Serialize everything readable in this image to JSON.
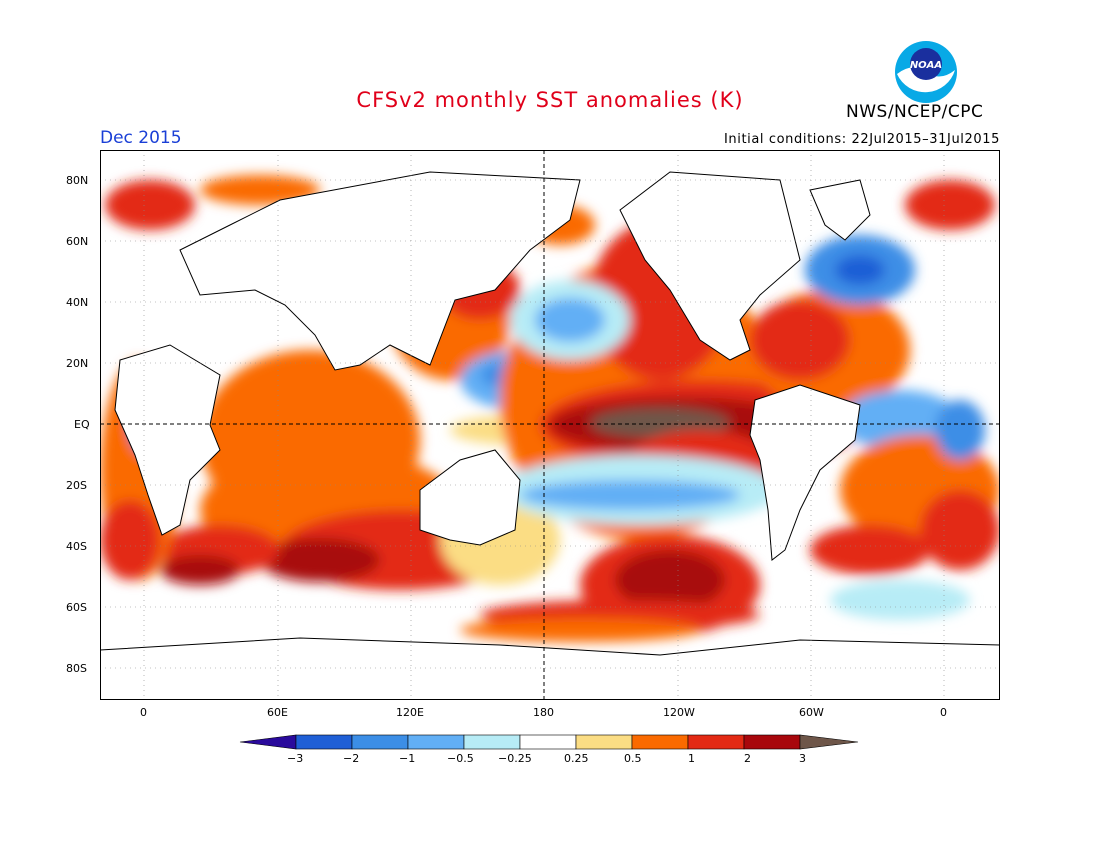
{
  "header": {
    "title": "CFSv2 monthly SST anomalies (K)",
    "org": "NWS/NCEP/CPC",
    "logo_text": "NOAA",
    "month": "Dec 2015",
    "initial_conditions": "Initial conditions: 22Jul2015–31Jul2015"
  },
  "axes": {
    "lat_labels": [
      "80N",
      "60N",
      "40N",
      "20N",
      "EQ",
      "20S",
      "40S",
      "60S",
      "80S"
    ],
    "lon_labels": [
      "0",
      "60E",
      "120E",
      "180",
      "120W",
      "60W",
      "0"
    ]
  },
  "colorbar": {
    "labels": [
      "−3",
      "−2",
      "−1",
      "−0.5",
      "−0.25",
      "0.25",
      "0.5",
      "1",
      "2",
      "3"
    ],
    "colors": [
      "#2a0a9c",
      "#1f5fd6",
      "#3c8ee6",
      "#62aff5",
      "#b7ecf6",
      "#ffffff",
      "#fbdd84",
      "#fa6a00",
      "#e32a14",
      "#a8070c",
      "#6e5649"
    ]
  }
}
